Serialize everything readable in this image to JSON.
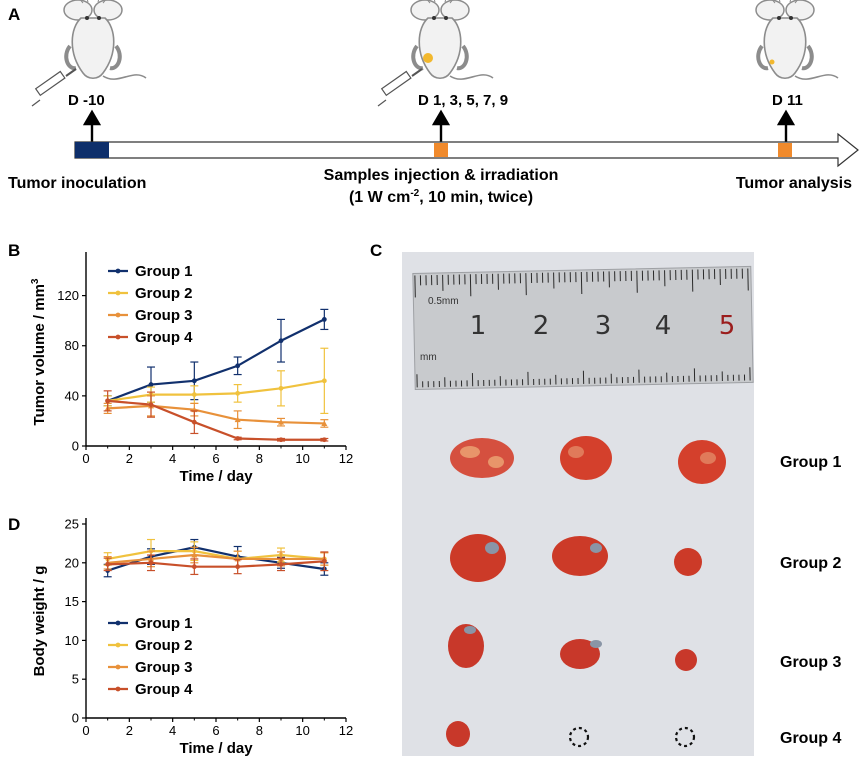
{
  "panels": {
    "a": "A",
    "b": "B",
    "c": "C",
    "d": "D"
  },
  "timeline": {
    "markers": [
      {
        "label": "D -10",
        "color": "#0e2f6b"
      },
      {
        "label": "D 1, 3, 5, 7, 9",
        "color": "#f08a2c"
      },
      {
        "label": "D 11",
        "color": "#f08a2c"
      }
    ],
    "bottom_left": "Tumor inoculation",
    "bottom_mid_1": "Samples injection & irradiation",
    "bottom_mid_2_pre": "(1 W cm",
    "bottom_mid_2_sup": "-2",
    "bottom_mid_2_post": ", 10 min, twice)",
    "bottom_right": "Tumor analysis"
  },
  "photo": {
    "ruler": {
      "numbers": [
        "1",
        "2",
        "3",
        "4",
        "5"
      ],
      "mm_small": "0.5mm",
      "mm": "mm"
    },
    "group_labels": [
      "Group 1",
      "Group 2",
      "Group 3",
      "Group 4"
    ]
  },
  "colors": {
    "group1": "#11306d",
    "group2": "#f0c23e",
    "group3": "#e8913a",
    "group4": "#c8502a",
    "timeline_dark": "#0e2f6b",
    "timeline_orange": "#f08a2c"
  },
  "chart_data": [
    {
      "id": "B",
      "type": "line",
      "xlabel": "Time / day",
      "ylabel_pre": "Tumor volume / mm",
      "ylabel_sup": "3",
      "xlim": [
        0,
        12
      ],
      "ylim": [
        0,
        150
      ],
      "xticks": [
        "0",
        "2",
        "4",
        "6",
        "8",
        "10",
        "12"
      ],
      "yticks": [
        "0",
        "40",
        "80",
        "120"
      ],
      "x": [
        1,
        3,
        5,
        7,
        9,
        11
      ],
      "series": [
        {
          "name": "Group 1",
          "values": [
            36,
            49,
            52,
            64,
            84,
            101
          ],
          "errors": [
            4,
            14,
            15,
            7,
            17,
            8
          ]
        },
        {
          "name": "Group 2",
          "values": [
            36,
            41,
            41,
            42,
            46,
            52
          ],
          "errors": [
            4,
            6,
            7,
            7,
            14,
            26
          ]
        },
        {
          "name": "Group 3",
          "values": [
            30,
            32,
            29,
            21,
            19,
            18
          ],
          "errors": [
            4,
            8,
            5,
            7,
            3,
            3
          ]
        },
        {
          "name": "Group 4",
          "values": [
            36,
            33,
            19,
            6,
            5,
            5
          ],
          "errors": [
            8,
            10,
            9,
            1,
            1,
            1
          ]
        }
      ],
      "legend": [
        "Group 1",
        "Group 2",
        "Group 3",
        "Group 4"
      ]
    },
    {
      "id": "D",
      "type": "line",
      "xlabel": "Time / day",
      "ylabel": "Body weight / g",
      "xlim": [
        0,
        12
      ],
      "ylim": [
        0,
        25
      ],
      "xticks": [
        "0",
        "2",
        "4",
        "6",
        "8",
        "10",
        "12"
      ],
      "yticks": [
        "0",
        "5",
        "10",
        "15",
        "20",
        "25"
      ],
      "x": [
        1,
        3,
        5,
        7,
        9,
        11
      ],
      "series": [
        {
          "name": "Group 1",
          "values": [
            19,
            20.8,
            22,
            20.8,
            20,
            19.2
          ],
          "errors": [
            0.8,
            1,
            1,
            1.3,
            0.7,
            0.8
          ]
        },
        {
          "name": "Group 2",
          "values": [
            20.5,
            21.5,
            21.5,
            20.5,
            21,
            20.5
          ],
          "errors": [
            0.8,
            1.5,
            1.2,
            1,
            0.9,
            0.8
          ]
        },
        {
          "name": "Group 3",
          "values": [
            20,
            20.5,
            21,
            20.5,
            20.5,
            20.5
          ],
          "errors": [
            0.8,
            1,
            1,
            1,
            0.9,
            0.8
          ]
        },
        {
          "name": "Group 4",
          "values": [
            19.8,
            20,
            19.5,
            19.5,
            19.8,
            20.2
          ],
          "errors": [
            0.8,
            1,
            1,
            0.9,
            0.8,
            1.2
          ]
        }
      ],
      "legend": [
        "Group 1",
        "Group 2",
        "Group 3",
        "Group 4"
      ]
    }
  ]
}
